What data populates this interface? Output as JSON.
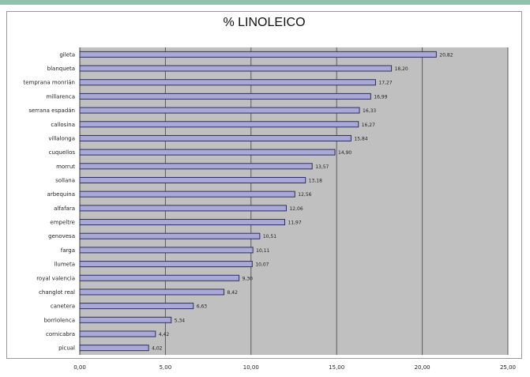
{
  "chart_data": {
    "type": "bar",
    "orientation": "horizontal",
    "title": "% LINOLEICO",
    "xlabel": "",
    "ylabel": "",
    "xlim": [
      0,
      25
    ],
    "grid": true,
    "categories": [
      "gileta",
      "blanqueta",
      "temprana monrián",
      "millarenca",
      "serrana espadán",
      "callosina",
      "villalonga",
      "cuquellos",
      "morrut",
      "sollana",
      "arbequina",
      "alfafara",
      "empeltre",
      "genovesa",
      "farga",
      "llumeta",
      "royal valencia",
      "changlot real",
      "canetera",
      "borriolenca",
      "cornicabra",
      "picual"
    ],
    "values": [
      20.82,
      18.2,
      17.27,
      16.99,
      16.33,
      16.27,
      15.84,
      14.9,
      13.57,
      13.18,
      12.56,
      12.06,
      11.97,
      10.51,
      10.11,
      10.07,
      9.3,
      8.42,
      6.63,
      5.34,
      4.42,
      4.02
    ],
    "value_labels": [
      "20,82",
      "18,20",
      "17,27",
      "16,99",
      "16,33",
      "16,27",
      "15,84",
      "14,90",
      "13,57",
      "13,18",
      "12,56",
      "12,06",
      "11,97",
      "10,51",
      "10,11",
      "10,07",
      "9,30",
      "8,42",
      "6,63",
      "5,34",
      "4,42",
      "4,02"
    ],
    "tick_labels": [
      "0,00",
      "5,00",
      "10,00",
      "15,00",
      "20,00",
      "25,00"
    ],
    "colors": {
      "bar_fill": "#a9a9d8",
      "bar_stroke": "#2e2e62",
      "plot_bg": "#c0c0c0",
      "grid": "#5a5a5a",
      "accent_rule": "#8fc3ae"
    }
  }
}
